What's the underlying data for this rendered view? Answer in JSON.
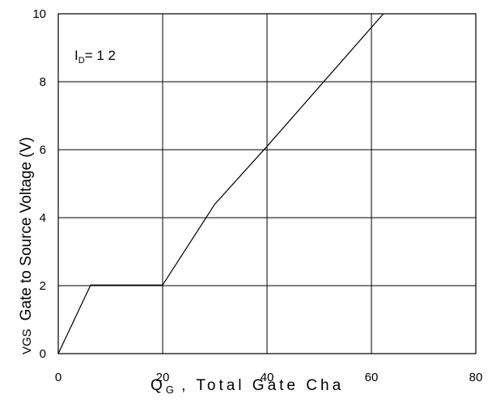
{
  "chart_data": {
    "type": "line",
    "title": "",
    "x": [
      0,
      6.2,
      20,
      30,
      40,
      62.3
    ],
    "series": [
      {
        "values": [
          0,
          2.02,
          2.02,
          4.4,
          6.1,
          10
        ]
      }
    ],
    "xlim": [
      0,
      80
    ],
    "ylim": [
      0,
      10
    ],
    "xticks": [
      "0",
      "20",
      "40",
      "60",
      "80"
    ],
    "yticks": [
      "0",
      "2",
      "4",
      "6",
      "8",
      "10"
    ],
    "grid": true,
    "xlabel": {
      "symbol": "Q",
      "subscript": "G",
      "text": " ,  Total Gate Cha"
    },
    "ylabel": {
      "symbol": "VGS",
      "text": "Gate to Source Voltage (V)"
    },
    "annotation": {
      "symbol": "I",
      "subscript": "D",
      "text": "= 1 2"
    },
    "colors": {
      "line": "#000000",
      "grid": "#000000",
      "background": "#ffffff"
    }
  }
}
